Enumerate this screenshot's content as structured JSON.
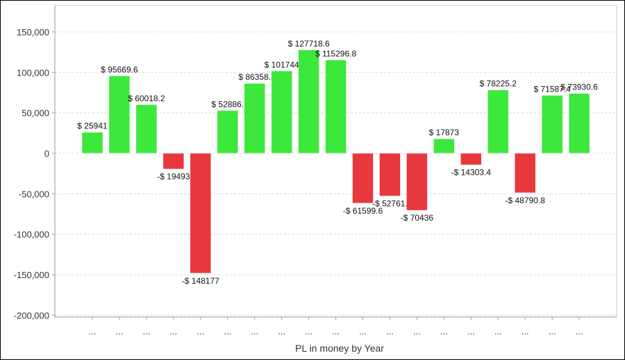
{
  "chart_data": {
    "type": "bar",
    "title": "",
    "xlabel": "PL in money by Year",
    "ylabel": "",
    "ylim": [
      -203000,
      182000
    ],
    "yticks": [
      -200000,
      -150000,
      -100000,
      -50000,
      0,
      50000,
      100000,
      150000
    ],
    "ytick_labels": [
      "-200,000",
      "-150,000",
      "-100,000",
      "-50,000",
      "0",
      "50,000",
      "100,000",
      "150,000"
    ],
    "grid": true,
    "categories": [
      "...",
      "...",
      "...",
      "...",
      "...",
      "...",
      "...",
      "...",
      "...",
      "...",
      "...",
      "...",
      "...",
      "...",
      "...",
      "...",
      "...",
      "...",
      "..."
    ],
    "values": [
      25941,
      95669.6,
      60018.2,
      -19493,
      -148177,
      52886,
      86358,
      101744,
      127718.6,
      115296.8,
      -61599.6,
      -52761,
      -70436,
      17873,
      -14303.4,
      78225.2,
      -48790.8,
      71587.4,
      73930.6
    ],
    "data_labels": [
      "$ 25941",
      "$ 95669.6",
      "$ 60018.2",
      "-$ 19493",
      "-$ 148177",
      "$ 52886.",
      "$ 86358.",
      "$ 101744",
      "$ 127718.6",
      "$ 115296.8",
      "-$ 61599.6",
      "-$ 52761.",
      "-$ 70436",
      "$ 17873",
      "-$ 14303.4",
      "$ 78225.2",
      "-$ 48790.8",
      "$ 71587.4",
      "$ 73930.6"
    ],
    "colors": {
      "positive": "#3de83d",
      "negative": "#e8383d"
    }
  }
}
